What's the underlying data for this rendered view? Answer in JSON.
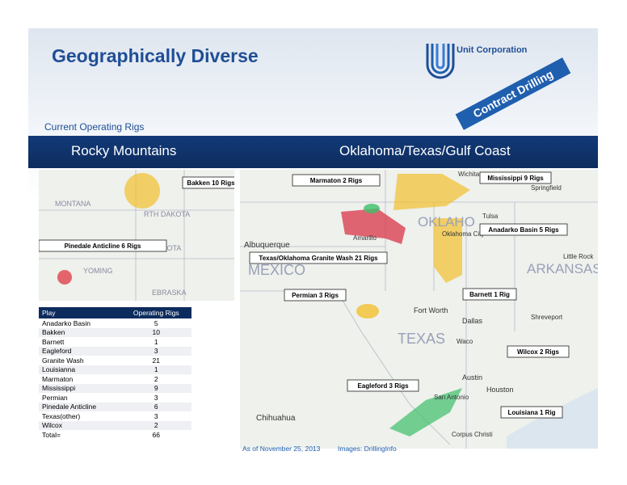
{
  "header": {
    "title": "Geographically Diverse",
    "company": "Unit Corporation",
    "tagline": "Contract Drilling",
    "subtitle": "Current Operating Rigs"
  },
  "sections": [
    "Rocky Mountains",
    "Oklahoma/Texas/Gulf Coast"
  ],
  "left_map": {
    "callouts": [
      "Bakken 10 Rigs",
      "Pinedale Anticline 6 Rigs"
    ],
    "labels": [
      "MONTANA",
      "RTH DAKOTA",
      "DAKOTA",
      "YOMING",
      "EBRASKA"
    ]
  },
  "right_map": {
    "callouts": [
      "Marmaton 2 Rigs",
      "Mississippi 9 Rigs",
      "Anadarko Basin 5 Rigs",
      "Texas/Oklahoma Granite Wash 21 Rigs",
      "Permian 3 Rigs",
      "Barnett 1 Rig",
      "Wilcox 2 Rigs",
      "Eagleford 3 Rigs",
      "Louisiana 1 Rig"
    ],
    "labels": [
      "Albuquerque",
      "MEXICO",
      "OKLAHO",
      "ARKANSAS",
      "TEXAS",
      "Wichita",
      "Springfield",
      "Tulsa",
      "Oklahoma City",
      "Amarillo",
      "Little Rock",
      "Fort Worth",
      "Dallas",
      "Waco",
      "Austin",
      "Houston",
      "San Antonio",
      "Shreveport",
      "Chihuahua",
      "Corpus Christi"
    ]
  },
  "table": {
    "columns": [
      "Play",
      "Operating Rigs"
    ],
    "rows": [
      [
        "Anadarko Basin",
        5
      ],
      [
        "Bakken",
        10
      ],
      [
        "Barnett",
        1
      ],
      [
        "Eagleford",
        3
      ],
      [
        "Granite Wash",
        21
      ],
      [
        "Louisianna",
        1
      ],
      [
        "Marmaton",
        2
      ],
      [
        "Mississippi",
        9
      ],
      [
        "Permian",
        3
      ],
      [
        "Pinedale Anticline",
        6
      ],
      [
        "Texas(other)",
        3
      ],
      [
        "Wilcox",
        2
      ],
      [
        "Total=",
        66
      ]
    ]
  },
  "footer": {
    "date": "As of November 25, 2013",
    "credit": "Images: DrillingInfo"
  }
}
